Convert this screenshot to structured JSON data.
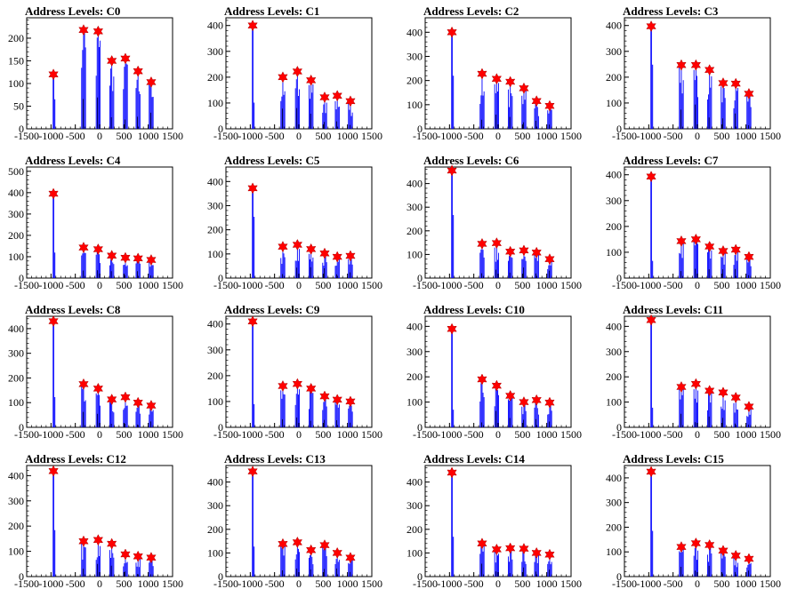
{
  "colors": {
    "histogram": "#0000ff",
    "peak_marker": "#ff0000",
    "axis": "#000000"
  },
  "chart_data": [
    {
      "type": "bar",
      "title": "Address Levels: C0",
      "xlim": [
        -1500,
        1500
      ],
      "ylim": [
        0,
        245
      ],
      "yticks": [
        0,
        50,
        100,
        150,
        200
      ],
      "xtick_labels": [
        "-1500",
        "-1000",
        "-500",
        "0",
        "500",
        "1000",
        "1500"
      ],
      "peaks_x": [
        -950,
        -330,
        -30,
        250,
        530,
        790,
        1060
      ],
      "peaks_y": [
        120,
        218,
        215,
        150,
        155,
        127,
        103
      ]
    },
    {
      "type": "bar",
      "title": "Address Levels: C1",
      "xlim": [
        -1500,
        1500
      ],
      "ylim": [
        0,
        430
      ],
      "yticks": [
        0,
        100,
        200,
        300,
        400
      ],
      "xtick_labels": [
        "-1500",
        "-1000",
        "-500",
        "0",
        "500",
        "1000",
        "1500"
      ],
      "peaks_x": [
        -950,
        -330,
        -30,
        250,
        530,
        790,
        1060
      ],
      "peaks_y": [
        400,
        200,
        222,
        188,
        122,
        128,
        107
      ]
    },
    {
      "type": "bar",
      "title": "Address Levels: C2",
      "xlim": [
        -1500,
        1500
      ],
      "ylim": [
        0,
        460
      ],
      "yticks": [
        0,
        100,
        200,
        300,
        400
      ],
      "xtick_labels": [
        "-1500",
        "-1000",
        "-500",
        "0",
        "500",
        "1000",
        "1500"
      ],
      "peaks_x": [
        -950,
        -330,
        -30,
        250,
        530,
        790,
        1060
      ],
      "peaks_y": [
        400,
        228,
        207,
        195,
        168,
        115,
        95
      ]
    },
    {
      "type": "bar",
      "title": "Address Levels: C3",
      "xlim": [
        -1500,
        1500
      ],
      "ylim": [
        0,
        430
      ],
      "yticks": [
        0,
        100,
        200,
        300,
        400
      ],
      "xtick_labels": [
        "-1500",
        "-1000",
        "-500",
        "0",
        "500",
        "1000",
        "1500"
      ],
      "peaks_x": [
        -950,
        -330,
        -30,
        250,
        530,
        790,
        1060
      ],
      "peaks_y": [
        397,
        247,
        247,
        228,
        177,
        175,
        136
      ]
    },
    {
      "type": "bar",
      "title": "Address Levels: C4",
      "xlim": [
        -1500,
        1500
      ],
      "ylim": [
        0,
        520
      ],
      "yticks": [
        0,
        100,
        200,
        300,
        400,
        500
      ],
      "xtick_labels": [
        "-1500",
        "-1000",
        "-500",
        "0",
        "500",
        "1000",
        "1500"
      ],
      "peaks_x": [
        -950,
        -330,
        -30,
        250,
        530,
        790,
        1060
      ],
      "peaks_y": [
        395,
        143,
        135,
        105,
        95,
        92,
        85
      ]
    },
    {
      "type": "bar",
      "title": "Address Levels: C5",
      "xlim": [
        -1500,
        1500
      ],
      "ylim": [
        0,
        460
      ],
      "yticks": [
        0,
        100,
        200,
        300,
        400
      ],
      "xtick_labels": [
        "-1500",
        "-1000",
        "-500",
        "0",
        "500",
        "1000",
        "1500"
      ],
      "peaks_x": [
        -950,
        -330,
        -30,
        250,
        530,
        790,
        1060
      ],
      "peaks_y": [
        372,
        130,
        138,
        120,
        102,
        88,
        92
      ]
    },
    {
      "type": "bar",
      "title": "Address Levels: C6",
      "xlim": [
        -1500,
        1500
      ],
      "ylim": [
        0,
        470
      ],
      "yticks": [
        0,
        100,
        200,
        300,
        400
      ],
      "xtick_labels": [
        "-1500",
        "-1000",
        "-500",
        "0",
        "500",
        "1000",
        "1500"
      ],
      "peaks_x": [
        -950,
        -330,
        -30,
        250,
        530,
        790,
        1060
      ],
      "peaks_y": [
        455,
        145,
        148,
        112,
        117,
        108,
        80
      ]
    },
    {
      "type": "bar",
      "title": "Address Levels: C7",
      "xlim": [
        -1500,
        1500
      ],
      "ylim": [
        0,
        430
      ],
      "yticks": [
        0,
        100,
        200,
        300,
        400
      ],
      "xtick_labels": [
        "-1500",
        "-1000",
        "-500",
        "0",
        "500",
        "1000",
        "1500"
      ],
      "peaks_x": [
        -950,
        -330,
        -30,
        250,
        530,
        790,
        1060
      ],
      "peaks_y": [
        393,
        143,
        150,
        122,
        105,
        110,
        82
      ]
    },
    {
      "type": "bar",
      "title": "Address Levels: C8",
      "xlim": [
        -1500,
        1500
      ],
      "ylim": [
        0,
        450
      ],
      "yticks": [
        0,
        100,
        200,
        300,
        400
      ],
      "xtick_labels": [
        "-1500",
        "-1000",
        "-500",
        "0",
        "500",
        "1000",
        "1500"
      ],
      "peaks_x": [
        -950,
        -330,
        -30,
        250,
        530,
        790,
        1060
      ],
      "peaks_y": [
        430,
        175,
        157,
        113,
        122,
        100,
        88
      ]
    },
    {
      "type": "bar",
      "title": "Address Levels: C9",
      "xlim": [
        -1500,
        1500
      ],
      "ylim": [
        0,
        430
      ],
      "yticks": [
        0,
        100,
        200,
        300,
        400
      ],
      "xtick_labels": [
        "-1500",
        "-1000",
        "-500",
        "0",
        "500",
        "1000",
        "1500"
      ],
      "peaks_x": [
        -950,
        -330,
        -30,
        250,
        530,
        790,
        1060
      ],
      "peaks_y": [
        410,
        160,
        168,
        150,
        120,
        107,
        100
      ]
    },
    {
      "type": "bar",
      "title": "Address Levels: C10",
      "xlim": [
        -1500,
        1500
      ],
      "ylim": [
        0,
        440
      ],
      "yticks": [
        0,
        100,
        200,
        300,
        400
      ],
      "xtick_labels": [
        "-1500",
        "-1000",
        "-500",
        "0",
        "500",
        "1000",
        "1500"
      ],
      "peaks_x": [
        -950,
        -330,
        -30,
        250,
        530,
        790,
        1060
      ],
      "peaks_y": [
        390,
        190,
        165,
        125,
        100,
        108,
        98
      ]
    },
    {
      "type": "bar",
      "title": "Address Levels: C11",
      "xlim": [
        -1500,
        1500
      ],
      "ylim": [
        0,
        440
      ],
      "yticks": [
        0,
        100,
        200,
        300,
        400
      ],
      "xtick_labels": [
        "-1500",
        "-1000",
        "-500",
        "0",
        "500",
        "1000",
        "1500"
      ],
      "peaks_x": [
        -950,
        -330,
        -30,
        250,
        530,
        790,
        1060
      ],
      "peaks_y": [
        425,
        160,
        172,
        145,
        138,
        118,
        82
      ]
    },
    {
      "type": "bar",
      "title": "Address Levels: C12",
      "xlim": [
        -1500,
        1500
      ],
      "ylim": [
        0,
        440
      ],
      "yticks": [
        0,
        100,
        200,
        300,
        400
      ],
      "xtick_labels": [
        "-1500",
        "-1000",
        "-500",
        "0",
        "500",
        "1000",
        "1500"
      ],
      "peaks_x": [
        -950,
        -330,
        -30,
        250,
        530,
        790,
        1060
      ],
      "peaks_y": [
        418,
        140,
        145,
        130,
        88,
        80,
        75
      ]
    },
    {
      "type": "bar",
      "title": "Address Levels: C13",
      "xlim": [
        -1500,
        1500
      ],
      "ylim": [
        0,
        470
      ],
      "yticks": [
        0,
        100,
        200,
        300,
        400
      ],
      "xtick_labels": [
        "-1500",
        "-1000",
        "-500",
        "0",
        "500",
        "1000",
        "1500"
      ],
      "peaks_x": [
        -950,
        -330,
        -30,
        250,
        530,
        790,
        1060
      ],
      "peaks_y": [
        445,
        138,
        145,
        112,
        133,
        100,
        80
      ]
    },
    {
      "type": "bar",
      "title": "Address Levels: C14",
      "xlim": [
        -1500,
        1500
      ],
      "ylim": [
        0,
        470
      ],
      "yticks": [
        0,
        100,
        200,
        300,
        400
      ],
      "xtick_labels": [
        "-1500",
        "-1000",
        "-500",
        "0",
        "500",
        "1000",
        "1500"
      ],
      "peaks_x": [
        -950,
        -330,
        -30,
        250,
        530,
        790,
        1060
      ],
      "peaks_y": [
        440,
        140,
        115,
        120,
        118,
        100,
        93
      ]
    },
    {
      "type": "bar",
      "title": "Address Levels: C15",
      "xlim": [
        -1500,
        1500
      ],
      "ylim": [
        0,
        450
      ],
      "yticks": [
        0,
        100,
        200,
        300,
        400
      ],
      "xtick_labels": [
        "-1500",
        "-1000",
        "-500",
        "0",
        "500",
        "1000",
        "1500"
      ],
      "peaks_x": [
        -950,
        -330,
        -30,
        250,
        530,
        790,
        1060
      ],
      "peaks_y": [
        425,
        120,
        135,
        128,
        105,
        85,
        72
      ]
    }
  ]
}
